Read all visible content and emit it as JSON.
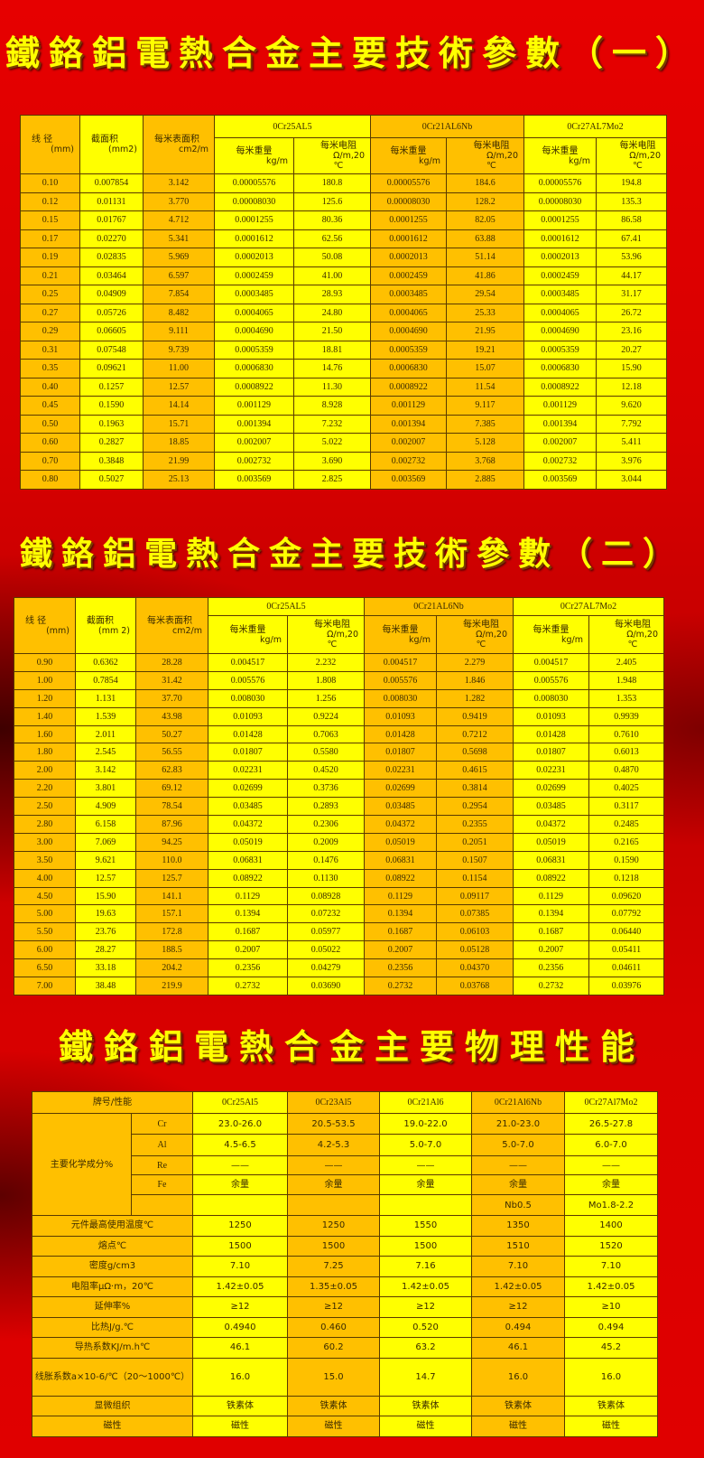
{
  "colors": {
    "orange": "#ffc000",
    "yellow": "#ffff00",
    "title": "#ffff00",
    "background": "#d80000"
  },
  "table1": {
    "title": "鐵鉻鋁電熱合金主要技術參數（一）",
    "headers": {
      "diameter": "线 径",
      "diameter_unit": "(mm)",
      "area": "截面积",
      "area_unit": "(mm2)",
      "surface": "每米表面积",
      "surface_unit": "cm2/m",
      "groups": [
        "0Cr25AL5",
        "0Cr21AL6Nb",
        "0Cr27AL7Mo2"
      ],
      "weight": "每米重量",
      "weight_unit": "kg/m",
      "resist": "每米电阻",
      "resist_unit": "Ω/m,20",
      "resist_unit2": "℃"
    },
    "rows": [
      [
        "0.10",
        "0.007854",
        "3.142",
        "0.00005576",
        "180.8",
        "0.00005576",
        "184.6",
        "0.00005576",
        "194.8"
      ],
      [
        "0.12",
        "0.01131",
        "3.770",
        "0.00008030",
        "125.6",
        "0.00008030",
        "128.2",
        "0.00008030",
        "135.3"
      ],
      [
        "0.15",
        "0.01767",
        "4.712",
        "0.0001255",
        "80.36",
        "0.0001255",
        "82.05",
        "0.0001255",
        "86.58"
      ],
      [
        "0.17",
        "0.02270",
        "5.341",
        "0.0001612",
        "62.56",
        "0.0001612",
        "63.88",
        "0.0001612",
        "67.41"
      ],
      [
        "0.19",
        "0.02835",
        "5.969",
        "0.0002013",
        "50.08",
        "0.0002013",
        "51.14",
        "0.0002013",
        "53.96"
      ],
      [
        "0.21",
        "0.03464",
        "6.597",
        "0.0002459",
        "41.00",
        "0.0002459",
        "41.86",
        "0.0002459",
        "44.17"
      ],
      [
        "0.25",
        "0.04909",
        "7.854",
        "0.0003485",
        "28.93",
        "0.0003485",
        "29.54",
        "0.0003485",
        "31.17"
      ],
      [
        "0.27",
        "0.05726",
        "8.482",
        "0.0004065",
        "24.80",
        "0.0004065",
        "25.33",
        "0.0004065",
        "26.72"
      ],
      [
        "0.29",
        "0.06605",
        "9.111",
        "0.0004690",
        "21.50",
        "0.0004690",
        "21.95",
        "0.0004690",
        "23.16"
      ],
      [
        "0.31",
        "0.07548",
        "9.739",
        "0.0005359",
        "18.81",
        "0.0005359",
        "19.21",
        "0.0005359",
        "20.27"
      ],
      [
        "0.35",
        "0.09621",
        "11.00",
        "0.0006830",
        "14.76",
        "0.0006830",
        "15.07",
        "0.0006830",
        "15.90"
      ],
      [
        "0.40",
        "0.1257",
        "12.57",
        "0.0008922",
        "11.30",
        "0.0008922",
        "11.54",
        "0.0008922",
        "12.18"
      ],
      [
        "0.45",
        "0.1590",
        "14.14",
        "0.001129",
        "8.928",
        "0.001129",
        "9.117",
        "0.001129",
        "9.620"
      ],
      [
        "0.50",
        "0.1963",
        "15.71",
        "0.001394",
        "7.232",
        "0.001394",
        "7.385",
        "0.001394",
        "7.792"
      ],
      [
        "0.60",
        "0.2827",
        "18.85",
        "0.002007",
        "5.022",
        "0.002007",
        "5.128",
        "0.002007",
        "5.411"
      ],
      [
        "0.70",
        "0.3848",
        "21.99",
        "0.002732",
        "3.690",
        "0.002732",
        "3.768",
        "0.002732",
        "3.976"
      ],
      [
        "0.80",
        "0.5027",
        "25.13",
        "0.003569",
        "2.825",
        "0.003569",
        "2.885",
        "0.003569",
        "3.044"
      ]
    ]
  },
  "table2": {
    "title": "鐵鉻鋁電熱合金主要技術參數（二）",
    "headers": {
      "diameter": "线 径",
      "diameter_unit": "(mm)",
      "area": "截面积",
      "area_unit": "(mm 2)",
      "surface": "每米表面积",
      "surface_unit": "cm2/m",
      "groups": [
        "0Cr25AL5",
        "0Cr21AL6Nb",
        "0Cr27AL7Mo2"
      ],
      "weight": "每米重量",
      "weight_unit": "kg/m",
      "resist": "每米电阻",
      "resist_unit": "Ω/m,20",
      "resist_unit2": "℃"
    },
    "rows": [
      [
        "0.90",
        "0.6362",
        "28.28",
        "0.004517",
        "2.232",
        "0.004517",
        "2.279",
        "0.004517",
        "2.405"
      ],
      [
        "1.00",
        "0.7854",
        "31.42",
        "0.005576",
        "1.808",
        "0.005576",
        "1.846",
        "0.005576",
        "1.948"
      ],
      [
        "1.20",
        "1.131",
        "37.70",
        "0.008030",
        "1.256",
        "0.008030",
        "1.282",
        "0.008030",
        "1.353"
      ],
      [
        "1.40",
        "1.539",
        "43.98",
        "0.01093",
        "0.9224",
        "0.01093",
        "0.9419",
        "0.01093",
        "0.9939"
      ],
      [
        "1.60",
        "2.011",
        "50.27",
        "0.01428",
        "0.7063",
        "0.01428",
        "0.7212",
        "0.01428",
        "0.7610"
      ],
      [
        "1.80",
        "2.545",
        "56.55",
        "0.01807",
        "0.5580",
        "0.01807",
        "0.5698",
        "0.01807",
        "0.6013"
      ],
      [
        "2.00",
        "3.142",
        "62.83",
        "0.02231",
        "0.4520",
        "0.02231",
        "0.4615",
        "0.02231",
        "0.4870"
      ],
      [
        "2.20",
        "3.801",
        "69.12",
        "0.02699",
        "0.3736",
        "0.02699",
        "0.3814",
        "0.02699",
        "0.4025"
      ],
      [
        "2.50",
        "4.909",
        "78.54",
        "0.03485",
        "0.2893",
        "0.03485",
        "0.2954",
        "0.03485",
        "0.3117"
      ],
      [
        "2.80",
        "6.158",
        "87.96",
        "0.04372",
        "0.2306",
        "0.04372",
        "0.2355",
        "0.04372",
        "0.2485"
      ],
      [
        "3.00",
        "7.069",
        "94.25",
        "0.05019",
        "0.2009",
        "0.05019",
        "0.2051",
        "0.05019",
        "0.2165"
      ],
      [
        "3.50",
        "9.621",
        "110.0",
        "0.06831",
        "0.1476",
        "0.06831",
        "0.1507",
        "0.06831",
        "0.1590"
      ],
      [
        "4.00",
        "12.57",
        "125.7",
        "0.08922",
        "0.1130",
        "0.08922",
        "0.1154",
        "0.08922",
        "0.1218"
      ],
      [
        "4.50",
        "15.90",
        "141.1",
        "0.1129",
        "0.08928",
        "0.1129",
        "0.09117",
        "0.1129",
        "0.09620"
      ],
      [
        "5.00",
        "19.63",
        "157.1",
        "0.1394",
        "0.07232",
        "0.1394",
        "0.07385",
        "0.1394",
        "0.07792"
      ],
      [
        "5.50",
        "23.76",
        "172.8",
        "0.1687",
        "0.05977",
        "0.1687",
        "0.06103",
        "0.1687",
        "0.06440"
      ],
      [
        "6.00",
        "28.27",
        "188.5",
        "0.2007",
        "0.05022",
        "0.2007",
        "0.05128",
        "0.2007",
        "0.05411"
      ],
      [
        "6.50",
        "33.18",
        "204.2",
        "0.2356",
        "0.04279",
        "0.2356",
        "0.04370",
        "0.2356",
        "0.04611"
      ],
      [
        "7.00",
        "38.48",
        "219.9",
        "0.2732",
        "0.03690",
        "0.2732",
        "0.03768",
        "0.2732",
        "0.03976"
      ]
    ]
  },
  "table3": {
    "title": "鐵鉻鋁電熱合金主要物理性能",
    "header_label": "牌号/性能",
    "grades": [
      "0Cr25Al5",
      "0Cr23Al5",
      "0Cr21Al6",
      "0Cr21Al6Nb",
      "0Cr27Al7Mo2"
    ],
    "composition_label": "主要化学成分%",
    "composition": [
      {
        "element": "Cr",
        "values": [
          "23.0-26.0",
          "20.5-53.5",
          "19.0-22.0",
          "21.0-23.0",
          "26.5-27.8"
        ]
      },
      {
        "element": "Al",
        "values": [
          "4.5-6.5",
          "4.2-5.3",
          "5.0-7.0",
          "5.0-7.0",
          "6.0-7.0"
        ]
      },
      {
        "element": "Re",
        "values": [
          "——",
          "——",
          "——",
          "——",
          "——"
        ]
      },
      {
        "element": "Fe",
        "values": [
          "余量",
          "余量",
          "余量",
          "余量",
          "余量"
        ]
      },
      {
        "element": "",
        "values": [
          "",
          "",
          "",
          "Nb0.5",
          "Mo1.8-2.2"
        ]
      }
    ],
    "properties": [
      {
        "label": "元件最高使用温度℃",
        "values": [
          "1250",
          "1250",
          "1550",
          "1350",
          "1400"
        ]
      },
      {
        "label": "熔点℃",
        "values": [
          "1500",
          "1500",
          "1500",
          "1510",
          "1520"
        ]
      },
      {
        "label": "密度g/cm3",
        "values": [
          "7.10",
          "7.25",
          "7.16",
          "7.10",
          "7.10"
        ]
      },
      {
        "label": "电阻率μΩ·m，20℃",
        "values": [
          "1.42±0.05",
          "1.35±0.05",
          "1.42±0.05",
          "1.42±0.05",
          "1.42±0.05"
        ]
      },
      {
        "label": "延伸率%",
        "values": [
          "≥12",
          "≥12",
          "≥12",
          "≥12",
          "≥10"
        ]
      },
      {
        "label": "比热J/g.℃",
        "values": [
          "0.4940",
          "0.460",
          "0.520",
          "0.494",
          "0.494"
        ]
      },
      {
        "label": "导热系数KJ/m.h℃",
        "values": [
          "46.1",
          "60.2",
          "63.2",
          "46.1",
          "45.2"
        ]
      },
      {
        "label": "线胀系数a×10-6/℃（20～1000℃）",
        "values": [
          "16.0",
          "15.0",
          "14.7",
          "16.0",
          "16.0"
        ]
      },
      {
        "label": "显微组织",
        "values": [
          "铁素体",
          "铁素体",
          "铁素体",
          "铁素体",
          "铁素体"
        ]
      },
      {
        "label": "磁性",
        "values": [
          "磁性",
          "磁性",
          "磁性",
          "磁性",
          "磁性"
        ]
      }
    ]
  }
}
